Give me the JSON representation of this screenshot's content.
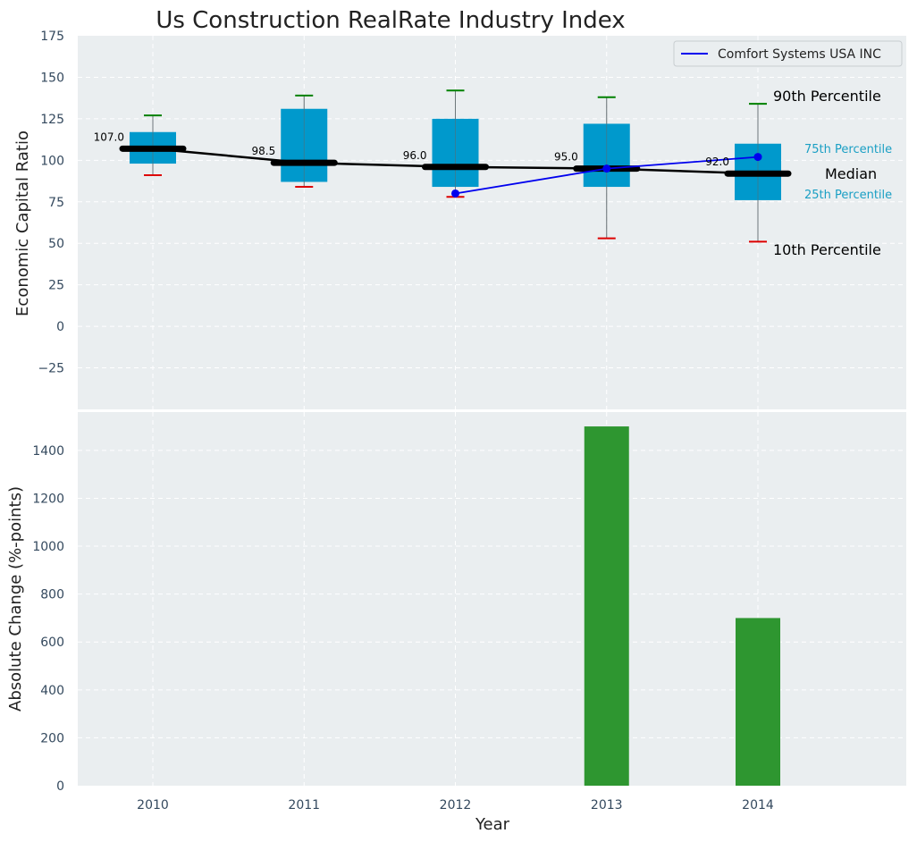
{
  "chart_data": [
    {
      "type": "box",
      "title": "Us Construction RealRate Industry Index",
      "ylabel": "Economic Capital Ratio",
      "categories": [
        "2010",
        "2011",
        "2012",
        "2013",
        "2014"
      ],
      "ylim": [
        -50,
        175
      ],
      "yticks": [
        -25,
        0,
        25,
        50,
        75,
        100,
        125,
        150,
        175
      ],
      "grid": true,
      "boxes": [
        {
          "year": "2010",
          "p10": 91,
          "p25": 98,
          "median": 107.0,
          "p75": 117,
          "p90": 127
        },
        {
          "year": "2011",
          "p10": 84,
          "p25": 87,
          "median": 98.5,
          "p75": 131,
          "p90": 139
        },
        {
          "year": "2012",
          "p10": 78,
          "p25": 84,
          "median": 96.0,
          "p75": 125,
          "p90": 142
        },
        {
          "year": "2013",
          "p10": 53,
          "p25": 84,
          "median": 95.0,
          "p75": 122,
          "p90": 138
        },
        {
          "year": "2014",
          "p10": 51,
          "p25": 76,
          "median": 92.0,
          "p75": 110,
          "p90": 134
        }
      ],
      "median_labels": [
        "107.0",
        "98.5",
        "96.0",
        "95.0",
        "92.0"
      ],
      "series": [
        {
          "name": "Comfort Systems USA INC",
          "x": [
            "2012",
            "2013",
            "2014"
          ],
          "values": [
            80,
            95,
            102
          ],
          "color": "#0000ee"
        }
      ],
      "legend": {
        "position": "top-right",
        "entries": [
          "Comfort Systems USA INC"
        ]
      },
      "annotations": {
        "p90": "90th Percentile",
        "p75": "75th Percentile",
        "median": "Median",
        "p25": "25th Percentile",
        "p10": "10th Percentile"
      },
      "colors": {
        "box": "#0099cc",
        "median": "#000000",
        "whisker_top": "#008000",
        "whisker_bottom": "#dd0000",
        "background": "#eaeef0"
      }
    },
    {
      "type": "bar",
      "ylabel": "Absolute Change (%-points)",
      "xlabel": "Year",
      "categories": [
        "2010",
        "2011",
        "2012",
        "2013",
        "2014"
      ],
      "values": [
        0,
        0,
        0,
        1500,
        700
      ],
      "ylim": [
        0,
        1560
      ],
      "yticks": [
        0,
        200,
        400,
        600,
        800,
        1000,
        1200,
        1400
      ],
      "grid": true,
      "colors": {
        "bar": "#2e9630",
        "background": "#eaeef0"
      }
    }
  ]
}
